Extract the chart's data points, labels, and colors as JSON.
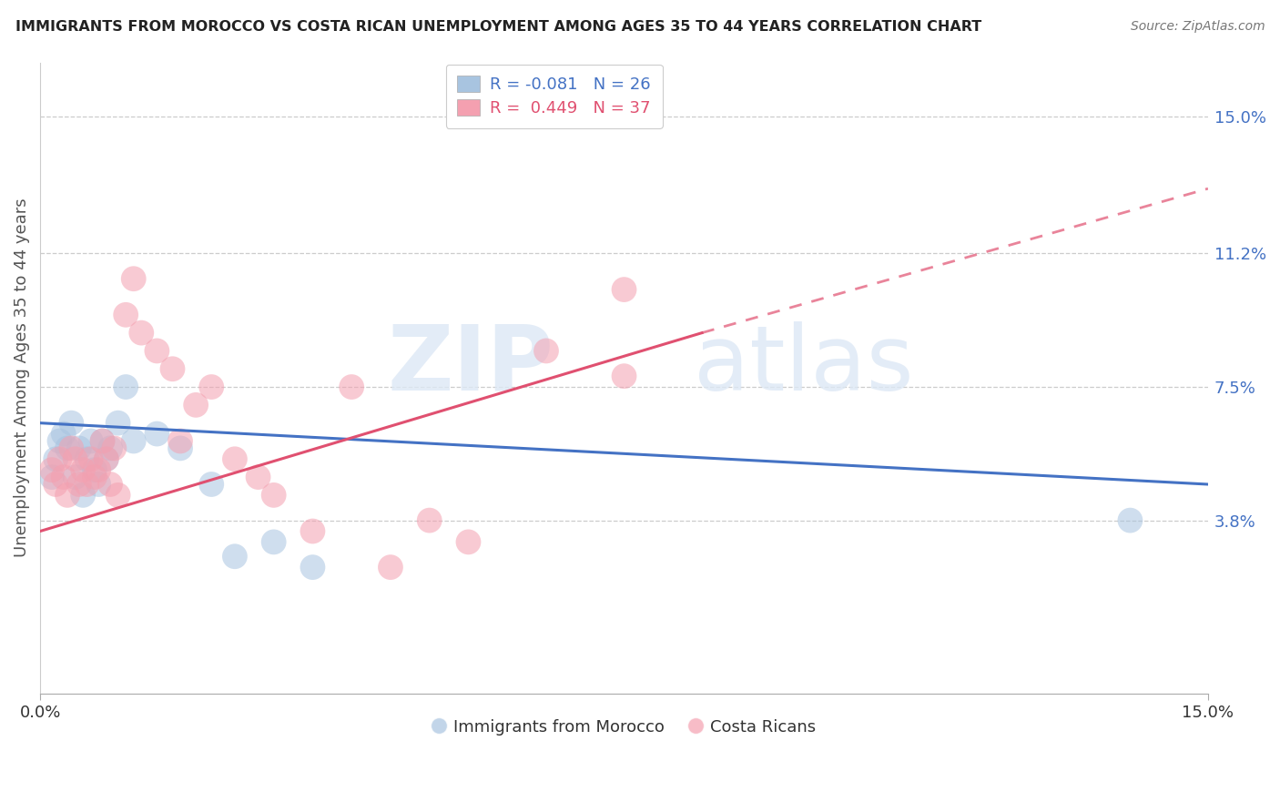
{
  "title": "IMMIGRANTS FROM MOROCCO VS COSTA RICAN UNEMPLOYMENT AMONG AGES 35 TO 44 YEARS CORRELATION CHART",
  "source": "Source: ZipAtlas.com",
  "ylabel": "Unemployment Among Ages 35 to 44 years",
  "ytick_labels": [
    "3.8%",
    "7.5%",
    "11.2%",
    "15.0%"
  ],
  "ytick_values": [
    3.8,
    7.5,
    11.2,
    15.0
  ],
  "xlim": [
    0.0,
    15.0
  ],
  "ylim": [
    -1.0,
    16.5
  ],
  "blue_R": "-0.081",
  "blue_N": "26",
  "pink_R": "0.449",
  "pink_N": "37",
  "blue_color": "#a8c4e0",
  "pink_color": "#f4a0b0",
  "blue_line_color": "#4472c4",
  "pink_line_color": "#e05070",
  "watermark_zip": "ZIP",
  "watermark_atlas": "atlas",
  "legend_label_blue": "Immigrants from Morocco",
  "legend_label_pink": "Costa Ricans",
  "blue_dots_x": [
    0.15,
    0.2,
    0.25,
    0.3,
    0.35,
    0.4,
    0.45,
    0.5,
    0.55,
    0.6,
    0.65,
    0.7,
    0.75,
    0.8,
    0.85,
    0.9,
    1.0,
    1.1,
    1.2,
    1.5,
    1.8,
    2.2,
    2.5,
    3.0,
    3.5,
    14.0
  ],
  "blue_dots_y": [
    5.0,
    5.5,
    6.0,
    6.2,
    5.8,
    6.5,
    5.0,
    5.8,
    4.5,
    5.5,
    6.0,
    5.2,
    4.8,
    6.0,
    5.5,
    5.8,
    6.5,
    7.5,
    6.0,
    6.2,
    5.8,
    4.8,
    2.8,
    3.2,
    2.5,
    3.8
  ],
  "pink_dots_x": [
    0.15,
    0.2,
    0.25,
    0.3,
    0.35,
    0.4,
    0.45,
    0.5,
    0.55,
    0.6,
    0.65,
    0.7,
    0.75,
    0.8,
    0.85,
    0.9,
    0.95,
    1.0,
    1.1,
    1.2,
    1.3,
    1.5,
    1.7,
    1.8,
    2.0,
    2.2,
    2.5,
    2.8,
    3.0,
    3.5,
    4.5,
    5.0,
    5.5,
    6.5,
    7.5,
    7.5,
    4.0
  ],
  "pink_dots_y": [
    5.2,
    4.8,
    5.5,
    5.0,
    4.5,
    5.8,
    5.5,
    4.8,
    5.2,
    4.8,
    5.5,
    5.0,
    5.2,
    6.0,
    5.5,
    4.8,
    5.8,
    4.5,
    9.5,
    10.5,
    9.0,
    8.5,
    8.0,
    6.0,
    7.0,
    7.5,
    5.5,
    5.0,
    4.5,
    3.5,
    2.5,
    3.8,
    3.2,
    8.5,
    7.8,
    10.2,
    7.5
  ],
  "blue_line_x0": 0.0,
  "blue_line_x1": 15.0,
  "blue_line_y0": 6.5,
  "blue_line_y1": 4.8,
  "pink_line_solid_x0": 0.0,
  "pink_line_solid_x1": 8.5,
  "pink_line_solid_y0": 3.5,
  "pink_line_solid_y1": 9.0,
  "pink_line_dash_x0": 8.5,
  "pink_line_dash_x1": 15.0,
  "pink_line_dash_y0": 9.0,
  "pink_line_dash_y1": 13.0
}
